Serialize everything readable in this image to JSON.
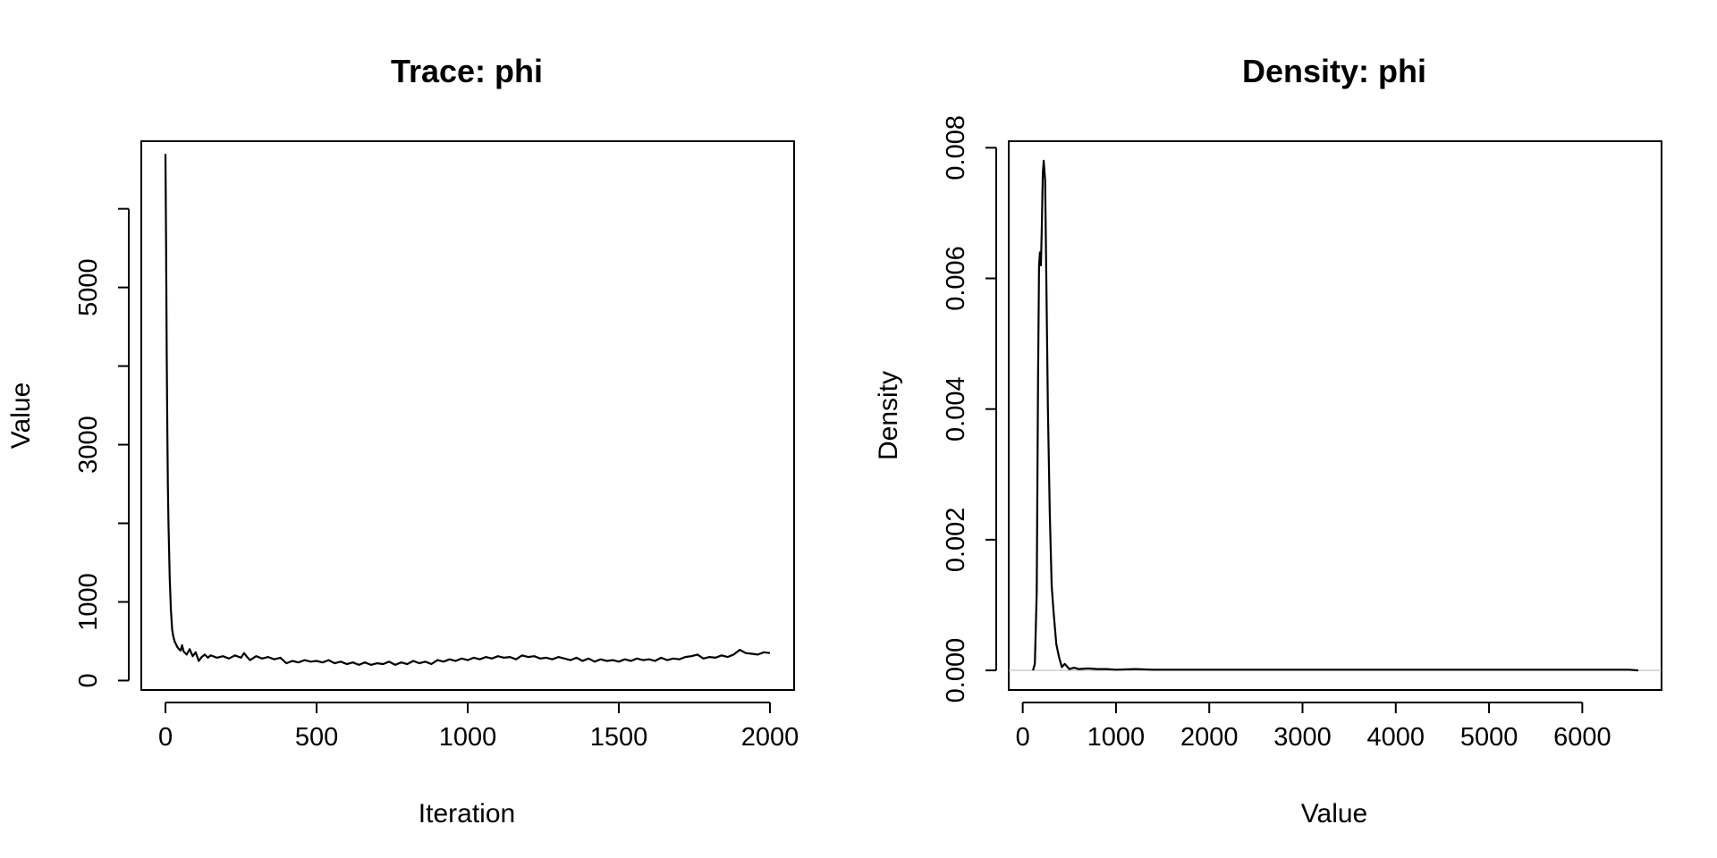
{
  "chart_data": [
    {
      "type": "line",
      "title": "Trace: phi",
      "xlabel": "Iteration",
      "ylabel": "Value",
      "xlim": [
        -80,
        2080
      ],
      "ylim": [
        -120,
        6860
      ],
      "xticks": [
        0,
        500,
        1000,
        1500,
        2000
      ],
      "yticks": [
        0,
        1000,
        2000,
        3000,
        4000,
        5000,
        6000
      ],
      "ytick_labels": [
        "0",
        "1000",
        "",
        "3000",
        "",
        "5000",
        ""
      ],
      "grid": false,
      "series": [
        {
          "x": [
            0,
            2,
            4,
            6,
            8,
            10,
            14,
            18,
            22,
            26,
            30,
            35,
            40,
            45,
            50,
            55,
            60,
            70,
            80,
            90,
            100,
            110,
            120,
            130,
            140,
            150,
            170,
            190,
            210,
            230,
            250,
            260,
            270,
            280,
            300,
            320,
            340,
            360,
            380,
            400,
            420,
            440,
            460,
            480,
            500,
            520,
            540,
            560,
            580,
            600,
            620,
            640,
            660,
            680,
            700,
            720,
            740,
            760,
            780,
            800,
            820,
            840,
            860,
            880,
            900,
            920,
            940,
            960,
            980,
            1000,
            1020,
            1040,
            1060,
            1080,
            1100,
            1120,
            1140,
            1160,
            1180,
            1200,
            1220,
            1240,
            1260,
            1280,
            1300,
            1320,
            1340,
            1360,
            1380,
            1400,
            1420,
            1440,
            1460,
            1480,
            1500,
            1520,
            1540,
            1560,
            1580,
            1600,
            1620,
            1640,
            1660,
            1680,
            1700,
            1720,
            1740,
            1760,
            1780,
            1800,
            1820,
            1840,
            1860,
            1880,
            1900,
            1920,
            1940,
            1960,
            1980,
            2000
          ],
          "values": [
            6700,
            5600,
            4200,
            3200,
            2500,
            2000,
            1300,
            900,
            650,
            560,
            500,
            460,
            420,
            400,
            380,
            450,
            370,
            330,
            400,
            310,
            360,
            250,
            300,
            330,
            290,
            320,
            290,
            310,
            280,
            320,
            290,
            350,
            300,
            260,
            310,
            280,
            300,
            270,
            290,
            220,
            250,
            230,
            260,
            240,
            250,
            230,
            260,
            220,
            240,
            210,
            230,
            200,
            230,
            200,
            220,
            210,
            240,
            200,
            230,
            210,
            250,
            220,
            240,
            210,
            260,
            240,
            270,
            250,
            280,
            260,
            290,
            270,
            300,
            280,
            310,
            290,
            300,
            270,
            320,
            300,
            310,
            280,
            290,
            270,
            300,
            280,
            260,
            290,
            250,
            280,
            240,
            270,
            250,
            260,
            240,
            270,
            250,
            280,
            260,
            270,
            250,
            290,
            260,
            280,
            270,
            300,
            310,
            330,
            280,
            300,
            290,
            320,
            300,
            330,
            390,
            350,
            340,
            330,
            360,
            350
          ]
        }
      ]
    },
    {
      "type": "line",
      "title": "Density: phi",
      "xlabel": "Value",
      "ylabel": "Density",
      "xlim": [
        -150,
        6850
      ],
      "ylim": [
        -0.0003,
        0.0081
      ],
      "xticks": [
        0,
        1000,
        2000,
        3000,
        4000,
        5000,
        6000
      ],
      "yticks": [
        0.0,
        0.002,
        0.004,
        0.006,
        0.008
      ],
      "ytick_labels": [
        "0.000",
        "0.002",
        "0.004",
        "0.006",
        "0.008"
      ],
      "grid": false,
      "reference_line_y": 0,
      "series": [
        {
          "x": [
            110,
            130,
            150,
            165,
            175,
            185,
            195,
            205,
            215,
            225,
            240,
            255,
            270,
            290,
            310,
            330,
            360,
            390,
            420,
            450,
            500,
            550,
            600,
            700,
            800,
            900,
            1000,
            1200,
            1400,
            1600,
            1800,
            2000,
            2500,
            3000,
            3500,
            4000,
            4500,
            5000,
            5500,
            6000,
            6500,
            6600
          ],
          "values": [
            0.0,
            0.0001,
            0.0012,
            0.0045,
            0.0062,
            0.0064,
            0.0062,
            0.0068,
            0.0076,
            0.0078,
            0.0075,
            0.0058,
            0.004,
            0.0024,
            0.0013,
            0.0009,
            0.0004,
            0.0002,
            5e-05,
            0.0001,
            2e-05,
            4e-05,
            2e-05,
            3e-05,
            2e-05,
            2e-05,
            1e-05,
            2e-05,
            1e-05,
            1e-05,
            1e-05,
            1e-05,
            1e-05,
            1e-05,
            1e-05,
            1e-05,
            1e-05,
            1e-05,
            1e-05,
            1e-05,
            1e-05,
            0.0
          ]
        }
      ]
    }
  ]
}
